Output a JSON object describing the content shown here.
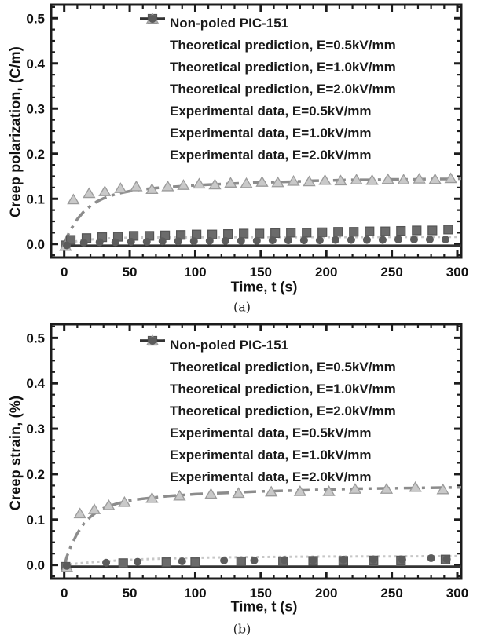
{
  "figure": {
    "palette": {
      "frame": "#1c1c1c",
      "text": "#111111",
      "background": "#ffffff"
    },
    "legend": {
      "title": "Non-poled PIC-151",
      "entries": [
        {
          "label": "Theoretical prediction, E=0.5kV/mm",
          "swatch": "dotted-line",
          "color": "#c7c7c7",
          "edge": "#c7c7c7"
        },
        {
          "label": "Theoretical prediction, E=1.0kV/mm",
          "swatch": "dash-dot-line",
          "color": "#8c8c8c",
          "edge": "#8c8c8c"
        },
        {
          "label": "Theoretical prediction, E=2.0kV/mm",
          "swatch": "solid-line",
          "color": "#333333",
          "edge": "#333333"
        },
        {
          "label": "Experimental data, E=0.5kV/mm",
          "swatch": "square",
          "color": "#6b6b6b",
          "edge": "#545454"
        },
        {
          "label": "Experimental data, E=1.0kV/mm",
          "swatch": "triangle",
          "color": "#c9c9c9",
          "edge": "#9b9b9b"
        },
        {
          "label": "Experimental data, E=2.0kV/mm",
          "swatch": "circle",
          "color": "#5c5c5c",
          "edge": "#5c5c5c"
        }
      ]
    }
  },
  "chart_data": [
    {
      "type": "line",
      "caption": "(a)",
      "xlabel": "Time, t (s)",
      "ylabel": "Creep polarization, (C/m)",
      "xlim": [
        -10,
        303
      ],
      "ylim": [
        -0.03,
        0.53
      ],
      "xticks": {
        "values": [
          0,
          50,
          100,
          150,
          200,
          250,
          300
        ],
        "labels": [
          "0",
          "50",
          "100",
          "150",
          "200",
          "250",
          "300"
        ],
        "minor_step": 10
      },
      "yticks": {
        "values": [
          0,
          0.1,
          0.2,
          0.3,
          0.4,
          0.5
        ],
        "labels": [
          "0.0",
          "0.1",
          "0.2",
          "0.3",
          "0.4",
          "0.5"
        ],
        "minor_step": 0.025
      },
      "series": [
        {
          "name": "Theoretical prediction, E=0.5kV/mm",
          "role": "line",
          "style": "dotted",
          "color": "#c7c7c7",
          "points": [
            [
              0,
              0
            ],
            [
              5,
              0.0036
            ],
            [
              10,
              0.0063
            ],
            [
              15,
              0.0083
            ],
            [
              20,
              0.0099
            ],
            [
              25,
              0.011
            ],
            [
              30,
              0.012
            ],
            [
              40,
              0.0132
            ],
            [
              50,
              0.0139
            ],
            [
              60,
              0.0143
            ],
            [
              80,
              0.0146
            ],
            [
              100,
              0.0147
            ],
            [
              125,
              0.0149
            ],
            [
              150,
              0.015
            ],
            [
              175,
              0.0151
            ],
            [
              200,
              0.0152
            ],
            [
              225,
              0.0153
            ],
            [
              250,
              0.0154
            ],
            [
              275,
              0.0155
            ],
            [
              300,
              0.0156
            ]
          ]
        },
        {
          "name": "Theoretical prediction, E=1.0kV/mm",
          "role": "line",
          "style": "dash-dot",
          "color": "#8c8c8c",
          "points": [
            [
              0,
              -0.002
            ],
            [
              2,
              0.015
            ],
            [
              5,
              0.032
            ],
            [
              10,
              0.055
            ],
            [
              15,
              0.072
            ],
            [
              20,
              0.084
            ],
            [
              25,
              0.094
            ],
            [
              30,
              0.101
            ],
            [
              35,
              0.106
            ],
            [
              40,
              0.111
            ],
            [
              45,
              0.114
            ],
            [
              50,
              0.117
            ],
            [
              60,
              0.121
            ],
            [
              70,
              0.124
            ],
            [
              80,
              0.126
            ],
            [
              90,
              0.128
            ],
            [
              100,
              0.13
            ],
            [
              115,
              0.132
            ],
            [
              130,
              0.134
            ],
            [
              145,
              0.136
            ],
            [
              160,
              0.137
            ],
            [
              175,
              0.138
            ],
            [
              190,
              0.14
            ],
            [
              205,
              0.141
            ],
            [
              220,
              0.142
            ],
            [
              235,
              0.142
            ],
            [
              250,
              0.143
            ],
            [
              265,
              0.143
            ],
            [
              280,
              0.144
            ],
            [
              295,
              0.144
            ],
            [
              303,
              0.145
            ]
          ]
        },
        {
          "name": "Theoretical prediction, E=2.0kV/mm",
          "role": "line",
          "style": "solid",
          "color": "#333333",
          "points": [
            [
              0,
              -0.004
            ],
            [
              303,
              -0.004
            ]
          ]
        },
        {
          "name": "Experimental data, E=0.5kV/mm",
          "role": "marker",
          "marker": "square",
          "color": "#6b6b6b",
          "edge": "#545454",
          "points": [
            [
              1,
              -0.003
            ],
            [
              5,
              0.009
            ],
            [
              17,
              0.013
            ],
            [
              29,
              0.015
            ],
            [
              41,
              0.016
            ],
            [
              53,
              0.018
            ],
            [
              65,
              0.018
            ],
            [
              77,
              0.019
            ],
            [
              89,
              0.02
            ],
            [
              101,
              0.021
            ],
            [
              113,
              0.021
            ],
            [
              125,
              0.022
            ],
            [
              137,
              0.023
            ],
            [
              149,
              0.023
            ],
            [
              161,
              0.024
            ],
            [
              173,
              0.025
            ],
            [
              185,
              0.025
            ],
            [
              197,
              0.026
            ],
            [
              209,
              0.027
            ],
            [
              221,
              0.027
            ],
            [
              233,
              0.028
            ],
            [
              245,
              0.028
            ],
            [
              257,
              0.029
            ],
            [
              269,
              0.03
            ],
            [
              281,
              0.03
            ],
            [
              293,
              0.032
            ]
          ]
        },
        {
          "name": "Experimental data, E=1.0kV/mm",
          "role": "marker",
          "marker": "triangle",
          "color": "#c9c9c9",
          "edge": "#9b9b9b",
          "points": [
            [
              1,
              -0.005
            ],
            [
              7,
              0.098
            ],
            [
              19,
              0.112
            ],
            [
              31,
              0.116
            ],
            [
              43,
              0.123
            ],
            [
              55,
              0.127
            ],
            [
              67,
              0.121
            ],
            [
              79,
              0.127
            ],
            [
              91,
              0.13
            ],
            [
              103,
              0.133
            ],
            [
              115,
              0.131
            ],
            [
              127,
              0.135
            ],
            [
              139,
              0.134
            ],
            [
              151,
              0.137
            ],
            [
              163,
              0.136
            ],
            [
              175,
              0.139
            ],
            [
              187,
              0.138
            ],
            [
              199,
              0.141
            ],
            [
              211,
              0.14
            ],
            [
              223,
              0.142
            ],
            [
              235,
              0.141
            ],
            [
              247,
              0.143
            ],
            [
              259,
              0.142
            ],
            [
              271,
              0.144
            ],
            [
              283,
              0.143
            ],
            [
              295,
              0.145
            ]
          ]
        },
        {
          "name": "Experimental data, E=2.0kV/mm",
          "role": "marker",
          "marker": "circle",
          "color": "#5c5c5c",
          "edge": "#5c5c5c",
          "points": [
            [
              2,
              -0.003
            ],
            [
              15,
              0.003
            ],
            [
              27,
              0.004
            ],
            [
              39,
              0.004
            ],
            [
              51,
              0.005
            ],
            [
              63,
              0.005
            ],
            [
              75,
              0.006
            ],
            [
              87,
              0.006
            ],
            [
              99,
              0.006
            ],
            [
              111,
              0.007
            ],
            [
              123,
              0.007
            ],
            [
              135,
              0.007
            ],
            [
              147,
              0.007
            ],
            [
              159,
              0.008
            ],
            [
              171,
              0.008
            ],
            [
              183,
              0.008
            ],
            [
              195,
              0.008
            ],
            [
              207,
              0.009
            ],
            [
              219,
              0.009
            ],
            [
              231,
              0.009
            ],
            [
              243,
              0.009
            ],
            [
              255,
              0.01
            ],
            [
              267,
              0.01
            ],
            [
              279,
              0.01
            ],
            [
              291,
              0.01
            ]
          ]
        }
      ]
    },
    {
      "type": "line",
      "caption": "(b)",
      "xlabel": "Time, t (s)",
      "ylabel": "Creep strain, (%)",
      "xlim": [
        -10,
        303
      ],
      "ylim": [
        -0.03,
        0.53
      ],
      "xticks": {
        "values": [
          0,
          50,
          100,
          150,
          200,
          250,
          300
        ],
        "labels": [
          "0",
          "50",
          "100",
          "150",
          "200",
          "250",
          "300"
        ],
        "minor_step": 10
      },
      "yticks": {
        "values": [
          0,
          0.1,
          0.2,
          0.3,
          0.4,
          0.5
        ],
        "labels": [
          "0.0",
          "0.1",
          "0.2",
          "0.3",
          "0.4",
          "0.5"
        ],
        "minor_step": 0.025
      },
      "series": [
        {
          "name": "Theoretical prediction, E=0.5kV/mm",
          "role": "line",
          "style": "dotted",
          "color": "#c7c7c7",
          "points": [
            [
              0,
              0
            ],
            [
              10,
              0.0032
            ],
            [
              20,
              0.0058
            ],
            [
              30,
              0.008
            ],
            [
              40,
              0.0098
            ],
            [
              50,
              0.0113
            ],
            [
              60,
              0.0126
            ],
            [
              80,
              0.0145
            ],
            [
              100,
              0.0158
            ],
            [
              125,
              0.0169
            ],
            [
              150,
              0.0176
            ],
            [
              200,
              0.0185
            ],
            [
              250,
              0.0189
            ],
            [
              300,
              0.0195
            ]
          ]
        },
        {
          "name": "Theoretical prediction, E=1.0kV/mm",
          "role": "line",
          "style": "dash-dot",
          "color": "#8c8c8c",
          "points": [
            [
              0,
              -0.002
            ],
            [
              2,
              0.018
            ],
            [
              5,
              0.041
            ],
            [
              10,
              0.07
            ],
            [
              15,
              0.091
            ],
            [
              20,
              0.106
            ],
            [
              25,
              0.117
            ],
            [
              30,
              0.125
            ],
            [
              40,
              0.135
            ],
            [
              50,
              0.142
            ],
            [
              60,
              0.146
            ],
            [
              80,
              0.152
            ],
            [
              100,
              0.156
            ],
            [
              125,
              0.159
            ],
            [
              150,
              0.162
            ],
            [
              175,
              0.164
            ],
            [
              200,
              0.166
            ],
            [
              225,
              0.168
            ],
            [
              250,
              0.169
            ],
            [
              275,
              0.17
            ],
            [
              303,
              0.171
            ]
          ]
        },
        {
          "name": "Theoretical prediction, E=2.0kV/mm",
          "role": "line",
          "style": "solid",
          "color": "#333333",
          "points": [
            [
              0,
              -0.004
            ],
            [
              303,
              -0.004
            ]
          ]
        },
        {
          "name": "Experimental data, E=0.5kV/mm",
          "role": "marker",
          "marker": "square",
          "color": "#6b6b6b",
          "edge": "#545454",
          "points": [
            [
              1,
              -0.004
            ],
            [
              45,
              0.004
            ],
            [
              78,
              0.006
            ],
            [
              100,
              0.006
            ],
            [
              135,
              0.008
            ],
            [
              167,
              0.008
            ],
            [
              190,
              0.009
            ],
            [
              213,
              0.009
            ],
            [
              236,
              0.01
            ],
            [
              257,
              0.01
            ],
            [
              291,
              0.012
            ]
          ]
        },
        {
          "name": "Experimental data, E=1.0kV/mm",
          "role": "marker",
          "marker": "triangle",
          "color": "#c9c9c9",
          "edge": "#9b9b9b",
          "points": [
            [
              2,
              -0.005
            ],
            [
              12,
              0.113
            ],
            [
              23,
              0.122
            ],
            [
              34,
              0.131
            ],
            [
              46,
              0.138
            ],
            [
              67,
              0.147
            ],
            [
              88,
              0.152
            ],
            [
              112,
              0.156
            ],
            [
              133,
              0.158
            ],
            [
              158,
              0.161
            ],
            [
              180,
              0.162
            ],
            [
              202,
              0.162
            ],
            [
              222,
              0.167
            ],
            [
              246,
              0.167
            ],
            [
              268,
              0.171
            ],
            [
              289,
              0.166
            ]
          ]
        },
        {
          "name": "Experimental data, E=2.0kV/mm",
          "role": "marker",
          "marker": "circle",
          "color": "#5c5c5c",
          "edge": "#5c5c5c",
          "points": [
            [
              2,
              -0.002
            ],
            [
              32,
              0.005
            ],
            [
              56,
              0.007
            ],
            [
              90,
              0.008
            ],
            [
              122,
              0.01
            ],
            [
              145,
              0.01
            ],
            [
              168,
              0.011
            ],
            [
              190,
              0.011
            ],
            [
              213,
              0.012
            ],
            [
              236,
              0.012
            ],
            [
              258,
              0.012
            ],
            [
              280,
              0.015
            ],
            [
              292,
              0.013
            ]
          ]
        }
      ]
    }
  ]
}
